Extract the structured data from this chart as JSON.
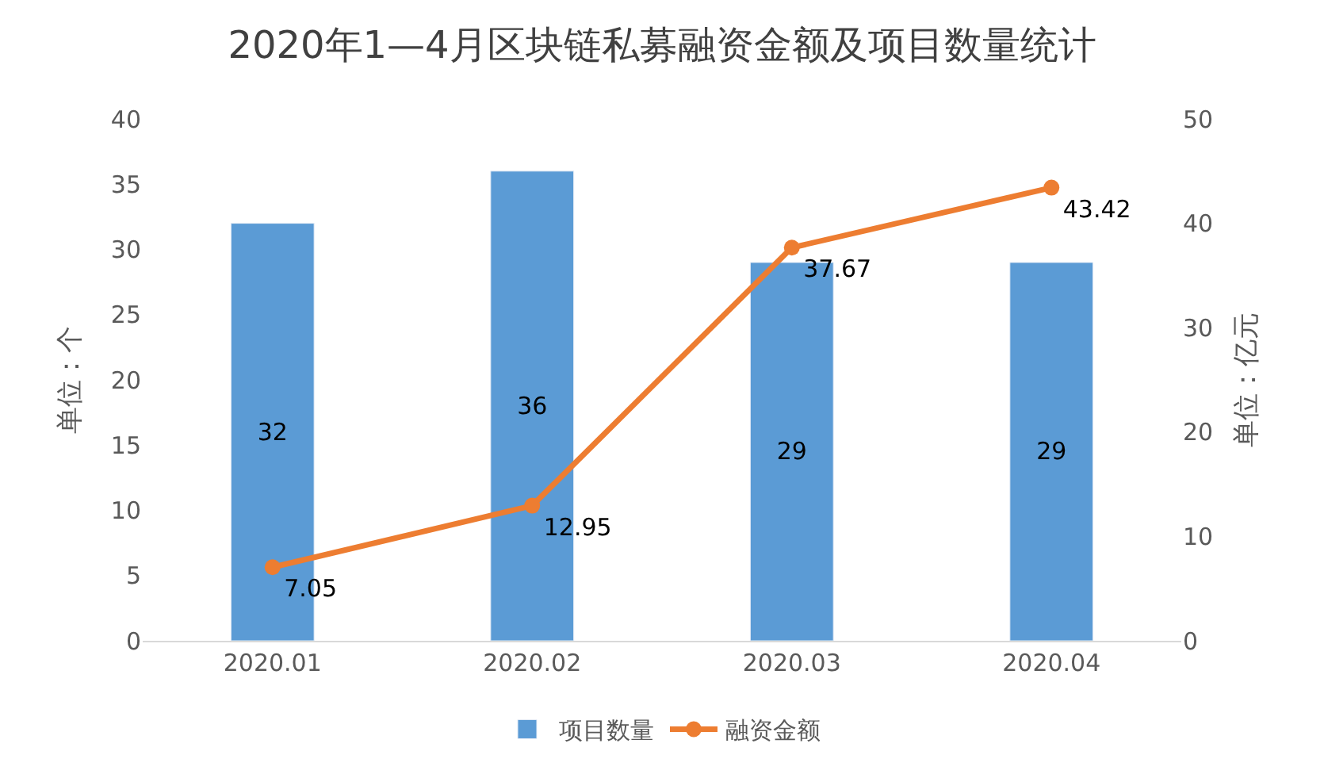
{
  "chart_data": {
    "type": "bar",
    "title": "2020年1—4月区块链私募融资金额及项目数量统计",
    "categories": [
      "2020.01",
      "2020.02",
      "2020.03",
      "2020.04"
    ],
    "series": [
      {
        "name": "项目数量",
        "color": "#5b9bd5",
        "values": [
          32,
          36,
          29,
          29
        ]
      },
      {
        "name": "融资金额",
        "type": "line",
        "axis": "y2",
        "color": "#ed7d31",
        "values": [
          7.05,
          12.95,
          37.67,
          43.42
        ],
        "marker": "circle"
      }
    ],
    "ylabel": "单位：个",
    "y2label": "单位：亿元",
    "ylim": [
      0,
      40
    ],
    "yticks": [
      0,
      5,
      10,
      15,
      20,
      25,
      30,
      35,
      40
    ],
    "y2lim": [
      0,
      50
    ],
    "y2ticks": [
      0,
      10,
      20,
      30,
      40,
      50
    ],
    "data_labels": true,
    "legend": "bottom"
  }
}
